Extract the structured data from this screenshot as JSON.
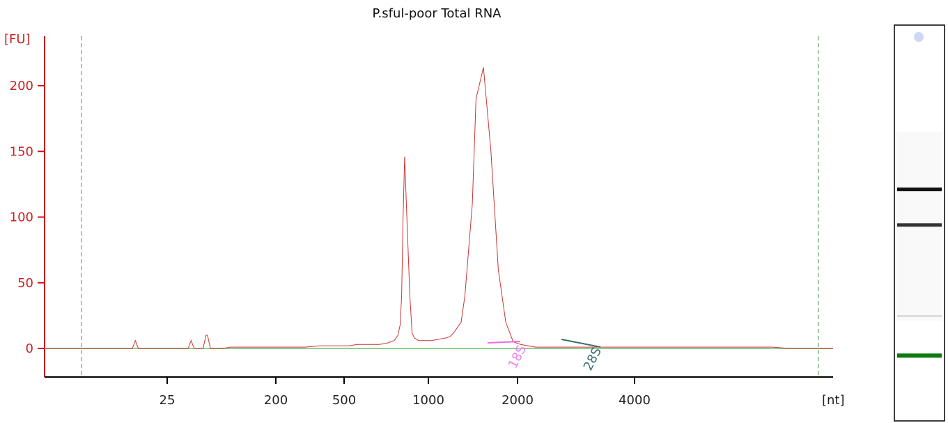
{
  "chart_data": {
    "type": "line",
    "title": "P.sful-poor Total RNA",
    "ylabel": "[FU]",
    "xlabel": "[nt]",
    "ylim": [
      -20,
      230
    ],
    "y_ticks": [
      0,
      50,
      100,
      150,
      200
    ],
    "x_ticks": [
      "25",
      "200",
      "500",
      "1000",
      "2000",
      "4000"
    ],
    "grid": false,
    "series": [
      {
        "x": [
          0,
          100,
          118,
          120,
          122,
          124,
          126,
          155,
          193,
          195,
          197,
          199,
          201,
          213,
          215,
          217,
          219,
          221,
          223,
          240,
          250,
          265,
          280,
          300,
          335,
          337,
          339,
          341,
          343,
          345,
          350,
          370,
          390,
          400,
          410,
          420,
          430,
          440,
          450,
          460,
          470,
          475,
          478,
          480,
          482,
          484,
          487,
          491,
          494,
          497,
          500,
          503,
          506,
          510,
          515,
          520,
          530,
          540,
          545,
          550,
          560,
          565,
          575,
          580,
          590,
          600,
          610,
          620,
          630,
          640,
          650,
          660,
          670,
          700,
          720,
          740,
          760,
          768,
          775,
          800,
          820,
          840,
          860,
          870,
          880,
          900,
          940,
          960,
          966,
          972,
          975,
          978,
          980,
          1000,
          1060
        ],
        "y": [
          0,
          0,
          0,
          3,
          6,
          3,
          0,
          0,
          0,
          3,
          6,
          3,
          0,
          0,
          5,
          10,
          10,
          5,
          0,
          0,
          1,
          1,
          1,
          1,
          1,
          1,
          1,
          1,
          1,
          1,
          1,
          2,
          2,
          2,
          2,
          3,
          3,
          3,
          3,
          4,
          6,
          10,
          18,
          40,
          100,
          146,
          100,
          40,
          12,
          8,
          7,
          6,
          6,
          6,
          6,
          6,
          7,
          8,
          9,
          12,
          20,
          40,
          110,
          190,
          214,
          150,
          60,
          20,
          5,
          3,
          2,
          1,
          1,
          1,
          1,
          1,
          1,
          1,
          1,
          1,
          1,
          1,
          1,
          1,
          1,
          1,
          1,
          1,
          1,
          1,
          1,
          1,
          1,
          0,
          0
        ]
      }
    ],
    "peaks": [
      {
        "label": "18S",
        "color": "#ee82ee"
      },
      {
        "label": "28S",
        "color": "#3a7070"
      }
    ]
  },
  "gel_lane": {
    "bands": [
      {
        "name": "marker-blob",
        "color": "#cfd6f6",
        "pos": 0.03
      },
      {
        "name": "band-28S",
        "color": "#111111",
        "pos": 0.415
      },
      {
        "name": "band-18S",
        "color": "#333333",
        "pos": 0.505
      },
      {
        "name": "band-faint",
        "color": "#dddddd",
        "pos": 0.735
      },
      {
        "name": "lower-marker",
        "color": "#0d7a0d",
        "pos": 0.835
      }
    ]
  }
}
